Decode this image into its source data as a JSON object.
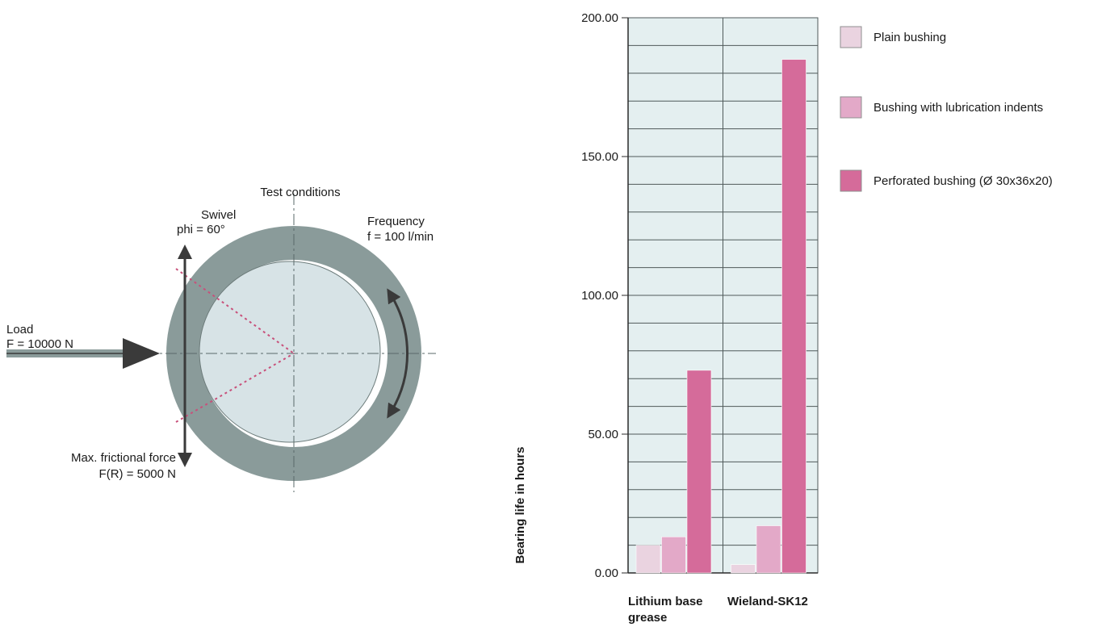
{
  "diagram": {
    "title": "Test conditions",
    "swivel": {
      "line1": "Swivel",
      "line2": "phi = 60°"
    },
    "frequency": {
      "line1": "Frequency",
      "line2": "f = 100 l/min"
    },
    "load": {
      "line1": "Load",
      "line2": "F = 10000 N"
    },
    "friction": {
      "line1": "Max. frictional force",
      "line2": "F(R) = 5000 N"
    },
    "colors": {
      "outer_ring": "#8a9b9a",
      "inner_disc": "#d7e3e6",
      "arrow": "#3a3a3a",
      "dotted": "#c8507a"
    }
  },
  "chart_data": {
    "type": "bar",
    "ylabel": "Bearing life in hours",
    "ylim": [
      0,
      200
    ],
    "yticks": [
      "0.00",
      "50.00",
      "100.00",
      "150.00",
      "200.00"
    ],
    "categories": [
      "Lithium base grease",
      "Wieland-SK12"
    ],
    "category_label_lines": [
      [
        "Lithium base",
        "grease"
      ],
      [
        "Wieland-SK12"
      ]
    ],
    "series": [
      {
        "name": "Plain bushing",
        "values": [
          10,
          3
        ],
        "color": "#ead3e0"
      },
      {
        "name": "Bushing with lubrication indents",
        "values": [
          13,
          17
        ],
        "color": "#e3a9c8"
      },
      {
        "name": "Perforated bushing (Ø 30x36x20)",
        "values": [
          73,
          185
        ],
        "color": "#d56b9a"
      }
    ],
    "grid": true,
    "plot_background": "#e4eff0",
    "legend_position": "right"
  }
}
